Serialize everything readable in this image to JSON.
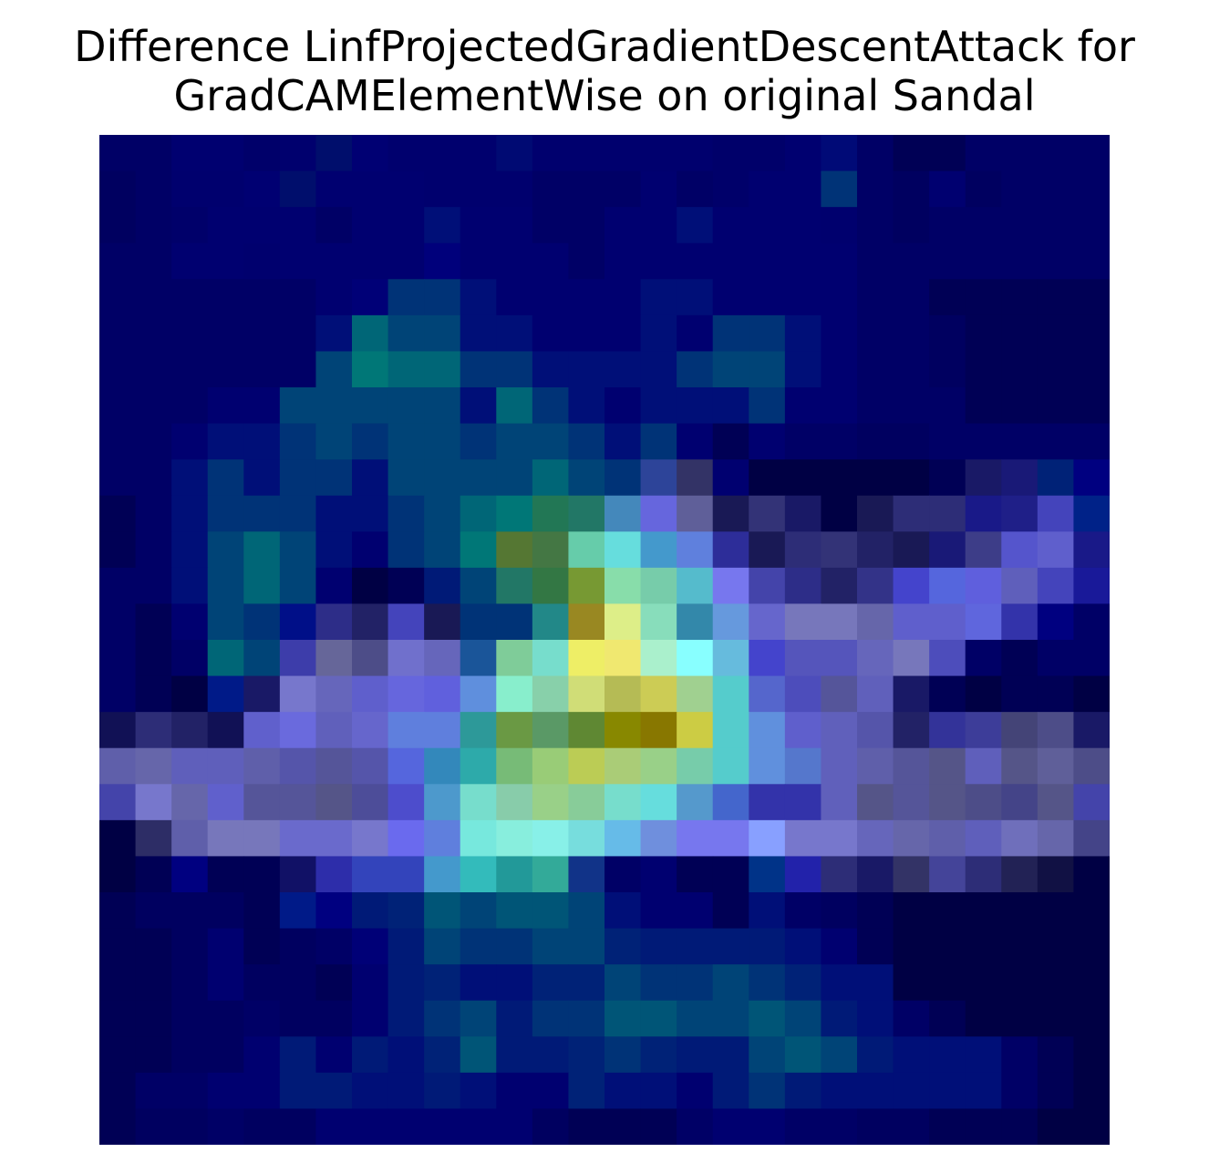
{
  "chart_data": {
    "type": "heatmap",
    "title_lines": [
      "Difference LinfProjectedGradientDescentAttack for",
      "GradCAMElementWise on original Sandal"
    ],
    "xlabel": "",
    "ylabel": "",
    "axes_visible": false,
    "grid": false,
    "legend": "none",
    "rows": 28,
    "cols": 28,
    "cell_colors": [
      [
        "#000066",
        "#000066",
        "#000070",
        "#000070",
        "#00006a",
        "#00006e",
        "#000e6c",
        "#000073",
        "#00006e",
        "#00006e",
        "#00006e",
        "#000a73",
        "#00006e",
        "#00006e",
        "#00006e",
        "#00006e",
        "#00006e",
        "#00006a",
        "#00006a",
        "#000070",
        "#000a77",
        "#000066",
        "#000055",
        "#000055",
        "#000066",
        "#000066",
        "#000066",
        "#000066"
      ],
      [
        "#000060",
        "#000066",
        "#00006e",
        "#00006e",
        "#000072",
        "#000e6c",
        "#000070",
        "#000070",
        "#000070",
        "#00006e",
        "#00006e",
        "#00006e",
        "#000066",
        "#000066",
        "#000066",
        "#000070",
        "#000066",
        "#00006a",
        "#000070",
        "#000070",
        "#003377",
        "#000066",
        "#000060",
        "#000070",
        "#000060",
        "#000066",
        "#000066",
        "#000066"
      ],
      [
        "#000060",
        "#000066",
        "#00006a",
        "#000070",
        "#000070",
        "#000070",
        "#000066",
        "#000070",
        "#000070",
        "#000f78",
        "#000070",
        "#000070",
        "#000066",
        "#000066",
        "#000070",
        "#000070",
        "#000f78",
        "#000070",
        "#000070",
        "#000070",
        "#00006e",
        "#000066",
        "#000060",
        "#000066",
        "#000066",
        "#000066",
        "#000066",
        "#000066"
      ],
      [
        "#000066",
        "#000066",
        "#000070",
        "#000070",
        "#00006e",
        "#000070",
        "#000070",
        "#000070",
        "#000070",
        "#00007b",
        "#000070",
        "#000070",
        "#000070",
        "#000066",
        "#000070",
        "#000070",
        "#000070",
        "#000070",
        "#000070",
        "#000070",
        "#000070",
        "#000066",
        "#000066",
        "#000066",
        "#000066",
        "#000066",
        "#000066",
        "#000066"
      ],
      [
        "#000066",
        "#000066",
        "#000066",
        "#000066",
        "#000066",
        "#000066",
        "#000070",
        "#000077",
        "#003377",
        "#003377",
        "#000f78",
        "#000070",
        "#000070",
        "#000070",
        "#000070",
        "#000f78",
        "#000f78",
        "#000070",
        "#000070",
        "#000070",
        "#000070",
        "#000066",
        "#000066",
        "#000055",
        "#000055",
        "#000055",
        "#000055",
        "#000055"
      ],
      [
        "#000066",
        "#000066",
        "#000066",
        "#000066",
        "#000066",
        "#000066",
        "#000f78",
        "#006677",
        "#004477",
        "#004477",
        "#000f78",
        "#000f78",
        "#000070",
        "#000070",
        "#000070",
        "#000f78",
        "#000070",
        "#003377",
        "#003377",
        "#000f78",
        "#000070",
        "#000066",
        "#000066",
        "#000060",
        "#000055",
        "#000055",
        "#000055",
        "#000055"
      ],
      [
        "#000066",
        "#000066",
        "#000066",
        "#000066",
        "#000066",
        "#000066",
        "#004477",
        "#007777",
        "#006677",
        "#006677",
        "#003377",
        "#003377",
        "#000f78",
        "#000f78",
        "#000f78",
        "#000f78",
        "#003377",
        "#004477",
        "#004477",
        "#000f78",
        "#000070",
        "#000066",
        "#000066",
        "#000060",
        "#000055",
        "#000055",
        "#000055",
        "#000055"
      ],
      [
        "#000066",
        "#000066",
        "#000066",
        "#000070",
        "#000070",
        "#004477",
        "#004477",
        "#004477",
        "#004477",
        "#004477",
        "#000f78",
        "#006677",
        "#003377",
        "#000f78",
        "#000070",
        "#000f78",
        "#000f78",
        "#000f78",
        "#003377",
        "#000070",
        "#000070",
        "#000066",
        "#000066",
        "#000066",
        "#000055",
        "#000055",
        "#000055",
        "#000055"
      ],
      [
        "#000066",
        "#000066",
        "#000070",
        "#000f78",
        "#000f78",
        "#003377",
        "#004477",
        "#003377",
        "#004477",
        "#004477",
        "#003377",
        "#004477",
        "#004477",
        "#003377",
        "#000f78",
        "#003377",
        "#000070",
        "#000055",
        "#000070",
        "#000066",
        "#000066",
        "#000060",
        "#000060",
        "#000066",
        "#000066",
        "#000066",
        "#000066",
        "#000066"
      ],
      [
        "#000066",
        "#000066",
        "#000f78",
        "#003377",
        "#000f78",
        "#003377",
        "#003377",
        "#000f78",
        "#004477",
        "#004477",
        "#004477",
        "#004477",
        "#006677",
        "#004477",
        "#003377",
        "#2d4499",
        "#333366",
        "#000070",
        "#000044",
        "#000044",
        "#000044",
        "#000044",
        "#000044",
        "#000055",
        "#191966",
        "#191977",
        "#002277",
        "#000080"
      ],
      [
        "#000055",
        "#000066",
        "#000f78",
        "#003377",
        "#003377",
        "#003377",
        "#000f78",
        "#000f78",
        "#003377",
        "#004477",
        "#006677",
        "#007777",
        "#227755",
        "#227766",
        "#4488bb",
        "#6666dd",
        "#5f5f99",
        "#191955",
        "#333377",
        "#191966",
        "#000044",
        "#191955",
        "#2d2d77",
        "#2d2d77",
        "#191988",
        "#1f1f88",
        "#4444bb",
        "#002288"
      ],
      [
        "#000055",
        "#000066",
        "#000f78",
        "#004477",
        "#006677",
        "#004477",
        "#000f78",
        "#000070",
        "#003377",
        "#004477",
        "#007777",
        "#557733",
        "#447744",
        "#66ccaa",
        "#66dddd",
        "#4499cc",
        "#5f80dd",
        "#2d2d99",
        "#191955",
        "#2d2d77",
        "#333377",
        "#222266",
        "#191955",
        "#191977",
        "#3d3d88",
        "#5555cc",
        "#5f5fcc",
        "#191988"
      ],
      [
        "#000066",
        "#000066",
        "#000f78",
        "#004477",
        "#006677",
        "#004477",
        "#000070",
        "#000044",
        "#000055",
        "#001a77",
        "#004477",
        "#227766",
        "#337744",
        "#779933",
        "#88ddaa",
        "#77ccaa",
        "#55bbcc",
        "#7777ee",
        "#4444aa",
        "#2d2d88",
        "#222266",
        "#333388",
        "#4444cc",
        "#5566dd",
        "#5f5fdd",
        "#5f5fbb",
        "#4444bb",
        "#191999"
      ],
      [
        "#000066",
        "#000055",
        "#000070",
        "#004477",
        "#003377",
        "#000f88",
        "#2d2d88",
        "#222266",
        "#4444bb",
        "#191955",
        "#003377",
        "#003377",
        "#228888",
        "#998822",
        "#ddee88",
        "#88ddbb",
        "#3388aa",
        "#6699dd",
        "#6666cc",
        "#7777bb",
        "#7777bb",
        "#6666aa",
        "#5f5fcc",
        "#5f5fcc",
        "#5f66dd",
        "#3333aa",
        "#000080",
        "#000066"
      ],
      [
        "#000066",
        "#000055",
        "#000066",
        "#006677",
        "#004477",
        "#3d3daa",
        "#666699",
        "#4d4d88",
        "#7070cc",
        "#6666bb",
        "#1a5599",
        "#7fcc99",
        "#77ddcc",
        "#eeee66",
        "#f0e870",
        "#aaf0cc",
        "#88ffff",
        "#66bbdd",
        "#4444cc",
        "#5555bb",
        "#5555bb",
        "#6666bb",
        "#7777bb",
        "#4d4dbb",
        "#000066",
        "#000055",
        "#000066",
        "#000066"
      ],
      [
        "#000066",
        "#000055",
        "#000044",
        "#001a88",
        "#191966",
        "#7777cc",
        "#6666bb",
        "#5f5fcc",
        "#6666dd",
        "#6060dd",
        "#5f8fdd",
        "#88eecc",
        "#88d0aa",
        "#d0dd77",
        "#b5bb55",
        "#cccc55",
        "#a0d090",
        "#55cccc",
        "#5566cc",
        "#4d4dbb",
        "#55559a",
        "#6060bb",
        "#191966",
        "#000055",
        "#000044",
        "#000055",
        "#000055",
        "#000044"
      ],
      [
        "#111155",
        "#2d2d77",
        "#222266",
        "#111155",
        "#6060cc",
        "#6a6add",
        "#6060bb",
        "#6666cc",
        "#5f7fdd",
        "#5f7fdd",
        "#2d9999",
        "#6a9944",
        "#5a9966",
        "#5f8833",
        "#888800",
        "#887700",
        "#cccc44",
        "#55cccc",
        "#6090dd",
        "#5f5fcc",
        "#6060bb",
        "#5555aa",
        "#222266",
        "#333399",
        "#3d3d99",
        "#444477",
        "#4d4d88",
        "#191966"
      ],
      [
        "#5f5faa",
        "#6666aa",
        "#5f5fbb",
        "#5f5fbb",
        "#5f5faa",
        "#5555aa",
        "#555599",
        "#5555aa",
        "#5566dd",
        "#3388bb",
        "#2daaaa",
        "#77bb77",
        "#99cc77",
        "#bbcc55",
        "#aacc77",
        "#99d088",
        "#77ccaa",
        "#55cccc",
        "#6090dd",
        "#5577cc",
        "#6060bb",
        "#5f5faa",
        "#555599",
        "#555588",
        "#5f5fbb",
        "#555588",
        "#5f5f99",
        "#4d4d88"
      ],
      [
        "#4444aa",
        "#7777cc",
        "#6666aa",
        "#6060cc",
        "#555599",
        "#555599",
        "#555588",
        "#4d4d99",
        "#4d4dcc",
        "#4d99cc",
        "#77ddcc",
        "#88ccaa",
        "#99d088",
        "#88cc99",
        "#77ddcc",
        "#66dddd",
        "#5599cc",
        "#4466cc",
        "#3333aa",
        "#3333aa",
        "#6060bb",
        "#555588",
        "#555599",
        "#555588",
        "#4d4d88",
        "#444488",
        "#555588",
        "#4444aa"
      ],
      [
        "#000044",
        "#2d2d66",
        "#5f5faa",
        "#7777bb",
        "#7777bb",
        "#6a6acc",
        "#6a6acc",
        "#7777cc",
        "#6a6aee",
        "#5f7fdd",
        "#77e8dd",
        "#88eedd",
        "#88f0e8",
        "#77dddd",
        "#66bbe8",
        "#6f8fdd",
        "#7777ee",
        "#7777ee",
        "#88a0ff",
        "#7777cc",
        "#7777cc",
        "#6666bb",
        "#6666aa",
        "#5f5faa",
        "#5f5fbb",
        "#6f6fbb",
        "#6666aa",
        "#444488"
      ],
      [
        "#000044",
        "#000055",
        "#000080",
        "#000055",
        "#000055",
        "#111166",
        "#2d2daa",
        "#3344bb",
        "#3344bb",
        "#4499cc",
        "#33bbbb",
        "#229999",
        "#33aa99",
        "#113388",
        "#000066",
        "#000070",
        "#000055",
        "#000055",
        "#003388",
        "#2222aa",
        "#2d2d77",
        "#191966",
        "#333366",
        "#444499",
        "#2d2d77",
        "#222255",
        "#111144",
        "#000044"
      ],
      [
        "#000055",
        "#000060",
        "#000060",
        "#000060",
        "#000055",
        "#001a88",
        "#000080",
        "#001a77",
        "#002277",
        "#005577",
        "#004477",
        "#005577",
        "#005577",
        "#004477",
        "#000f78",
        "#000070",
        "#000070",
        "#000055",
        "#000f78",
        "#000066",
        "#000060",
        "#000055",
        "#000044",
        "#000044",
        "#000044",
        "#000044",
        "#000044",
        "#000044"
      ],
      [
        "#000055",
        "#000055",
        "#000060",
        "#000070",
        "#000055",
        "#000060",
        "#000066",
        "#000077",
        "#001a77",
        "#004477",
        "#003377",
        "#003377",
        "#004477",
        "#004477",
        "#002277",
        "#001a77",
        "#001a77",
        "#001a77",
        "#001a77",
        "#000f78",
        "#000070",
        "#000055",
        "#000044",
        "#000044",
        "#000044",
        "#000044",
        "#000044",
        "#000044"
      ],
      [
        "#000055",
        "#000055",
        "#000060",
        "#000070",
        "#000060",
        "#000060",
        "#000055",
        "#000070",
        "#001a77",
        "#002277",
        "#000f78",
        "#000f78",
        "#002277",
        "#002277",
        "#004477",
        "#003377",
        "#003377",
        "#004477",
        "#003377",
        "#002277",
        "#000f78",
        "#000f78",
        "#000044",
        "#000044",
        "#000044",
        "#000044",
        "#000044",
        "#000044"
      ],
      [
        "#000055",
        "#000055",
        "#000060",
        "#000060",
        "#000066",
        "#000060",
        "#000060",
        "#000070",
        "#001a77",
        "#003377",
        "#004477",
        "#001a77",
        "#003377",
        "#003377",
        "#005577",
        "#005577",
        "#004477",
        "#004477",
        "#005577",
        "#004477",
        "#001a77",
        "#000f78",
        "#000066",
        "#000055",
        "#000044",
        "#000044",
        "#000044",
        "#000044"
      ],
      [
        "#000055",
        "#000055",
        "#000060",
        "#000060",
        "#000070",
        "#001a77",
        "#000070",
        "#001a77",
        "#000f78",
        "#002277",
        "#005577",
        "#001a77",
        "#001a77",
        "#002277",
        "#003377",
        "#002277",
        "#001a77",
        "#001a77",
        "#004477",
        "#005577",
        "#004477",
        "#001a77",
        "#000f78",
        "#000f78",
        "#000f78",
        "#000066",
        "#000055",
        "#000044"
      ],
      [
        "#000055",
        "#000066",
        "#000066",
        "#000070",
        "#000070",
        "#001a77",
        "#001a77",
        "#000f78",
        "#000f78",
        "#001a77",
        "#000f78",
        "#000070",
        "#000070",
        "#002277",
        "#000f78",
        "#000f78",
        "#000070",
        "#001a77",
        "#003377",
        "#001a77",
        "#000f78",
        "#000f78",
        "#000f78",
        "#000f78",
        "#000f78",
        "#000066",
        "#000055",
        "#000044"
      ],
      [
        "#000055",
        "#000060",
        "#000060",
        "#000066",
        "#000060",
        "#000060",
        "#000070",
        "#000070",
        "#000070",
        "#000070",
        "#000070",
        "#000070",
        "#000060",
        "#000055",
        "#000055",
        "#000055",
        "#000066",
        "#000070",
        "#000070",
        "#000066",
        "#000066",
        "#000060",
        "#000060",
        "#000055",
        "#000055",
        "#000055",
        "#000044",
        "#000044"
      ]
    ]
  }
}
